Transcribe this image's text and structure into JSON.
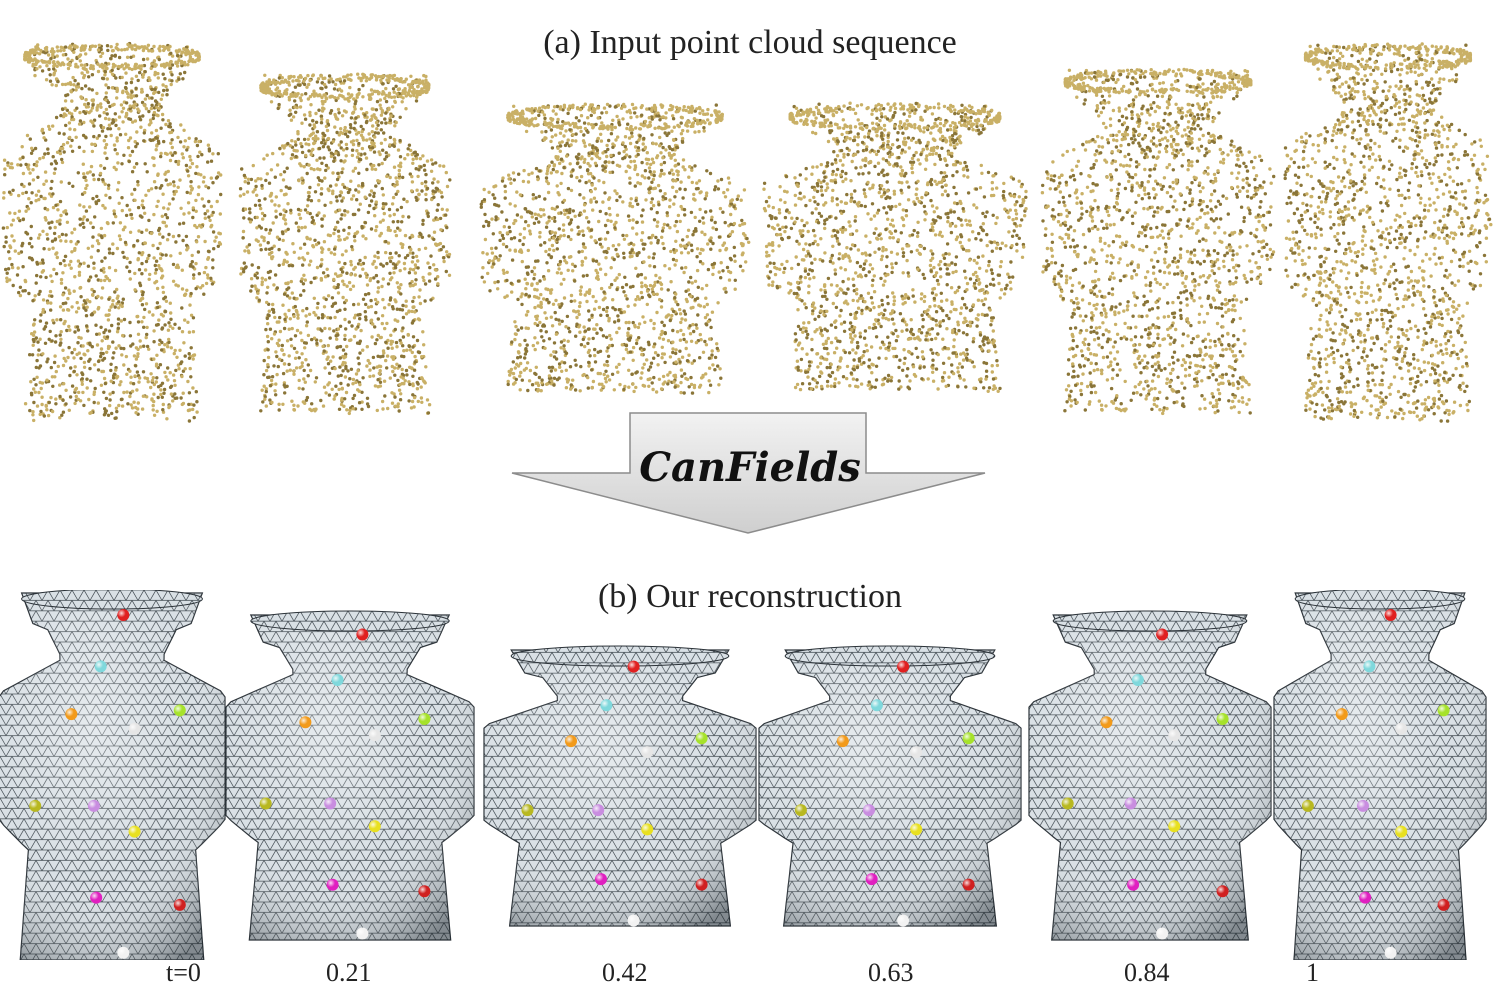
{
  "figure": {
    "caption_a": "(a) Input point cloud sequence",
    "method_name": "CanFields",
    "caption_b": "(b) Our reconstruction",
    "time_labels": [
      "t=0",
      "0.21",
      "0.42",
      "0.63",
      "0.84",
      "1"
    ]
  },
  "colors": {
    "point_color": "#c9b066",
    "point_shadow": "#8a7538",
    "mesh_fill": "#d6dde2",
    "mesh_line": "#3e474e",
    "arrow_fill": "#e2e2e2",
    "arrow_stroke": "#8c8c8c",
    "markers": [
      "#e02020",
      "#7fd8dc",
      "#f29a1a",
      "#e6e6e6",
      "#a6e22a",
      "#b8b820",
      "#c98de0",
      "#e8e020",
      "#e020c0",
      "#d02020",
      "#f2f2f2"
    ]
  },
  "sequence": {
    "frame_count": 6,
    "squash_factors": [
      0,
      0.21,
      0.42,
      0.63,
      0.84,
      1
    ]
  }
}
